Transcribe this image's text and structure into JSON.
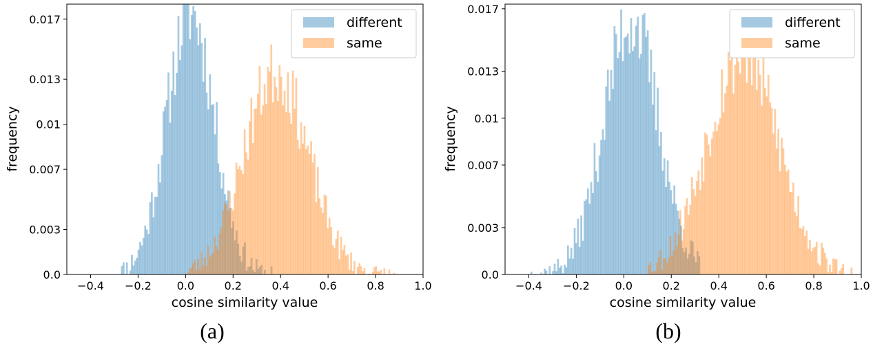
{
  "figure": {
    "captions": [
      "(a)",
      "(b)"
    ]
  },
  "colors": {
    "different": "#1f77b4",
    "same": "#ff7f0e",
    "bar_opacity": 0.4
  },
  "chart_data": [
    {
      "type": "histogram",
      "panel": "a",
      "xlabel": "cosine similarity value",
      "ylabel": "frequency",
      "xlim": [
        -0.5,
        1.0
      ],
      "ylim": [
        0.0,
        0.018
      ],
      "xticks": [
        -0.4,
        -0.2,
        0.0,
        0.2,
        0.4,
        0.6,
        0.8,
        1.0
      ],
      "xtick_labels": [
        "−0.4",
        "−0.2",
        "0.0",
        "0.2",
        "0.4",
        "0.6",
        "0.8",
        "1.0"
      ],
      "yticks": [
        0.0,
        0.003,
        0.007,
        0.01,
        0.013,
        0.017
      ],
      "ytick_labels": [
        "0.0",
        "0.003",
        "0.007",
        "0.01",
        "0.013",
        "0.017"
      ],
      "legend": {
        "position": "top-right",
        "entries": [
          "different",
          "same"
        ]
      },
      "series": [
        {
          "name": "different",
          "mean": 0.02,
          "sd": 0.1,
          "range": [
            -0.3,
            0.36
          ],
          "peak": 0.0175,
          "noise": 0.0026,
          "seed": 11
        },
        {
          "name": "same",
          "mean": 0.38,
          "sd": 0.135,
          "range": [
            0.0,
            0.88
          ],
          "peak": 0.0135,
          "noise": 0.0022,
          "seed": 23
        }
      ]
    },
    {
      "type": "histogram",
      "panel": "b",
      "xlabel": "cosine similarity value",
      "ylabel": "frequency",
      "xlim": [
        -0.5,
        1.0
      ],
      "ylim": [
        0.0,
        0.0173
      ],
      "xticks": [
        -0.4,
        -0.2,
        0.0,
        0.2,
        0.4,
        0.6,
        0.8,
        1.0
      ],
      "xtick_labels": [
        "−0.4",
        "−0.2",
        "0.0",
        "0.2",
        "0.4",
        "0.6",
        "0.8",
        "1.0"
      ],
      "yticks": [
        0.0,
        0.003,
        0.007,
        0.01,
        0.013,
        0.017
      ],
      "ytick_labels": [
        "0.0",
        "0.003",
        "0.007",
        "0.01",
        "0.013",
        "0.017"
      ],
      "legend": {
        "position": "top-right",
        "entries": [
          "different",
          "same"
        ]
      },
      "series": [
        {
          "name": "different",
          "mean": 0.03,
          "sd": 0.115,
          "range": [
            -0.4,
            0.32
          ],
          "peak": 0.0163,
          "noise": 0.0026,
          "seed": 37
        },
        {
          "name": "same",
          "mean": 0.5,
          "sd": 0.15,
          "range": [
            0.08,
            0.96
          ],
          "peak": 0.0142,
          "noise": 0.0024,
          "seed": 53
        }
      ]
    }
  ]
}
